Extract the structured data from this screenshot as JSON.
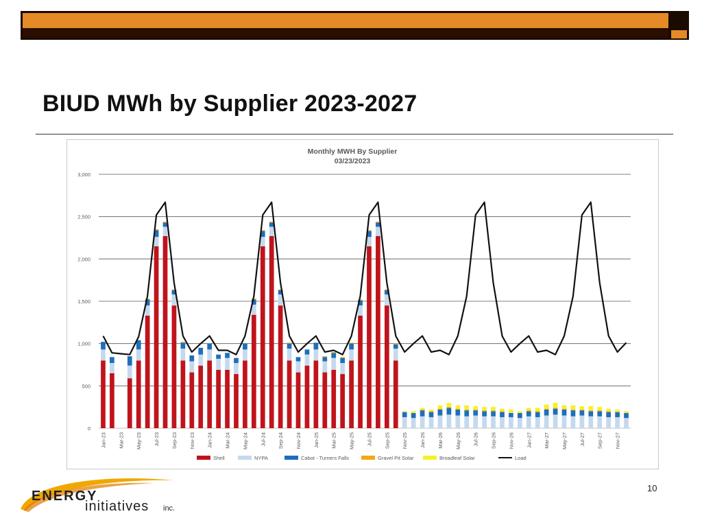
{
  "slide": {
    "title": "BIUD MWh by Supplier 2023-2027",
    "page_number": "10",
    "logo_text_top": "ENERGY",
    "logo_text_bottom": "initiatives",
    "logo_text_suffix": "inc."
  },
  "colors": {
    "banner_orange": "#e48a26",
    "banner_dark": "#1a0a00"
  },
  "chart_data": {
    "type": "bar",
    "stacked": true,
    "title": "Monthly MWH By Supplier",
    "subtitle": "03/23/2023",
    "xlabel": "",
    "ylabel": "",
    "ylim": [
      0,
      3000
    ],
    "yticks": [
      0,
      500,
      1000,
      1500,
      2000,
      2500,
      3000
    ],
    "ytick_labels": [
      "0",
      "500",
      "1,000",
      "1,500",
      "2,000",
      "2,500",
      "3,000"
    ],
    "grid": true,
    "legend_position": "bottom",
    "categories": [
      "Jan-23",
      "Feb-23",
      "Mar-23",
      "Apr-23",
      "May-23",
      "Jun-23",
      "Jul-23",
      "Aug-23",
      "Sep-23",
      "Oct-23",
      "Nov-23",
      "Dec-23",
      "Jan-24",
      "Feb-24",
      "Mar-24",
      "Apr-24",
      "May-24",
      "Jun-24",
      "Jul-24",
      "Aug-24",
      "Sep-24",
      "Oct-24",
      "Nov-24",
      "Dec-24",
      "Jan-25",
      "Feb-25",
      "Mar-25",
      "Apr-25",
      "May-25",
      "Jun-25",
      "Jul-25",
      "Aug-25",
      "Sep-25",
      "Oct-25",
      "Nov-25",
      "Dec-25",
      "Jan-26",
      "Feb-26",
      "Mar-26",
      "Apr-26",
      "May-26",
      "Jun-26",
      "Jul-26",
      "Aug-26",
      "Sep-26",
      "Oct-26",
      "Nov-26",
      "Dec-26",
      "Jan-27",
      "Feb-27",
      "Mar-27",
      "Apr-27",
      "May-27",
      "Jun-27",
      "Jul-27",
      "Aug-27",
      "Sep-27",
      "Oct-27",
      "Nov-27",
      "Dec-27"
    ],
    "xtick_labels": [
      "Jan-23",
      "Mar-23",
      "May-23",
      "Jul-23",
      "Sep-23",
      "Nov-23",
      "Jan-24",
      "Mar-24",
      "May-24",
      "Jul-24",
      "Sep-24",
      "Nov-24",
      "Jan-25",
      "Mar-25",
      "May-25",
      "Jul-25",
      "Sep-25",
      "Nov-25",
      "Jan-26",
      "Mar-26",
      "May-26",
      "Jul-26",
      "Sep-26",
      "Nov-26",
      "Jan-27",
      "Mar-27",
      "May-27",
      "Jul-27",
      "Sep-27",
      "Nov-27"
    ],
    "series": [
      {
        "name": "Shell",
        "kind": "bar",
        "color": "#c0141c",
        "values": [
          800,
          650,
          0,
          590,
          800,
          1330,
          2150,
          2270,
          1450,
          800,
          660,
          740,
          800,
          690,
          690,
          640,
          800,
          1340,
          2150,
          2270,
          1450,
          800,
          660,
          740,
          800,
          660,
          690,
          640,
          800,
          1330,
          2150,
          2270,
          1450,
          800,
          0,
          0,
          0,
          0,
          0,
          0,
          0,
          0,
          0,
          0,
          0,
          0,
          0,
          0,
          0,
          0,
          0,
          0,
          0,
          0,
          0,
          0,
          0,
          0,
          0,
          0
        ]
      },
      {
        "name": "NYPA",
        "kind": "bar",
        "color": "#c5d9ee",
        "values": [
          130,
          120,
          0,
          150,
          130,
          120,
          110,
          110,
          130,
          140,
          130,
          130,
          130,
          130,
          140,
          130,
          130,
          120,
          110,
          110,
          130,
          140,
          130,
          130,
          130,
          130,
          140,
          130,
          130,
          120,
          110,
          110,
          130,
          140,
          130,
          120,
          140,
          130,
          150,
          160,
          150,
          140,
          150,
          140,
          140,
          130,
          130,
          120,
          140,
          130,
          150,
          160,
          150,
          140,
          150,
          140,
          140,
          130,
          130,
          120
        ]
      },
      {
        "name": "Cabot - Turners Falls",
        "kind": "bar",
        "color": "#1f6fb8",
        "values": [
          90,
          70,
          0,
          110,
          110,
          70,
          80,
          50,
          50,
          70,
          70,
          80,
          70,
          50,
          60,
          60,
          70,
          60,
          70,
          50,
          50,
          60,
          50,
          60,
          80,
          50,
          60,
          60,
          70,
          60,
          70,
          50,
          50,
          50,
          60,
          60,
          70,
          60,
          70,
          80,
          70,
          70,
          60,
          60,
          60,
          60,
          50,
          60,
          60,
          60,
          70,
          70,
          70,
          70,
          60,
          60,
          60,
          60,
          60,
          60
        ]
      },
      {
        "name": "Gravel Pit Solar",
        "kind": "bar",
        "color": "#f2a917",
        "values": [
          0,
          0,
          0,
          0,
          0,
          10,
          10,
          10,
          10,
          10,
          0,
          0,
          0,
          0,
          0,
          0,
          0,
          10,
          10,
          10,
          10,
          10,
          0,
          0,
          0,
          10,
          10,
          10,
          10,
          10,
          10,
          10,
          10,
          10,
          0,
          0,
          10,
          10,
          10,
          10,
          10,
          10,
          10,
          10,
          10,
          10,
          0,
          0,
          10,
          10,
          10,
          10,
          10,
          10,
          10,
          10,
          10,
          10,
          0,
          0
        ]
      },
      {
        "name": "Broadleaf Solar",
        "kind": "bar",
        "color": "#f4f12a",
        "values": [
          0,
          0,
          0,
          0,
          0,
          0,
          0,
          0,
          0,
          0,
          0,
          0,
          0,
          0,
          0,
          0,
          0,
          0,
          0,
          0,
          0,
          0,
          0,
          0,
          0,
          0,
          0,
          0,
          0,
          0,
          0,
          0,
          0,
          0,
          10,
          20,
          20,
          20,
          40,
          50,
          40,
          50,
          40,
          40,
          40,
          30,
          40,
          20,
          30,
          40,
          50,
          60,
          40,
          50,
          40,
          50,
          40,
          30,
          30,
          20
        ]
      },
      {
        "name": "Load",
        "kind": "line",
        "color": "#111111",
        "values": [
          1090,
          890,
          880,
          870,
          1080,
          1560,
          2520,
          2670,
          1720,
          1090,
          900,
          1000,
          1090,
          920,
          920,
          870,
          1090,
          1560,
          2520,
          2670,
          1720,
          1090,
          900,
          1000,
          1090,
          900,
          920,
          870,
          1090,
          1560,
          2520,
          2670,
          1720,
          1090,
          900,
          1000,
          1090,
          900,
          920,
          870,
          1090,
          1560,
          2520,
          2670,
          1720,
          1090,
          900,
          1000,
          1090,
          900,
          920,
          870,
          1090,
          1560,
          2520,
          2670,
          1720,
          1090,
          900,
          1010
        ]
      }
    ]
  }
}
